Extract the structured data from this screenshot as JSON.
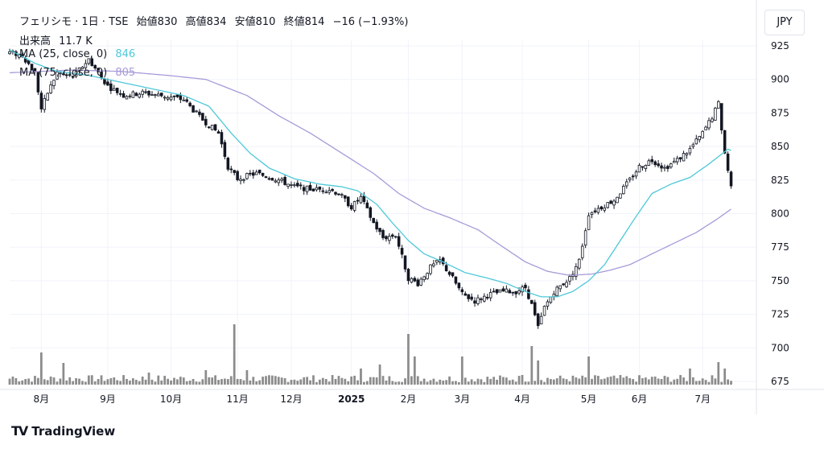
{
  "header": {
    "symbol": "フェリシモ · 1日 · TSE",
    "open_label": "始値",
    "open": "830",
    "high_label": "高値",
    "high": "834",
    "low_label": "安値",
    "low": "810",
    "close_label": "終値",
    "close": "814",
    "change": "−16 (−1.93%)",
    "volume_label": "出来高",
    "volume": "11.7 K",
    "ma1_label": "MA (25, close, 0)",
    "ma1_value": "846",
    "ma2_label": "MA (75, close, 0)",
    "ma2_value": "805"
  },
  "currency": "JPY",
  "brand": "TradingView",
  "colors": {
    "candle": "#131722",
    "ma25": "#4dc8d8",
    "ma75": "#a79ad9",
    "volume": "#8c8c8c",
    "grid": "#f0f3fa"
  },
  "chart_data": {
    "type": "candlestick",
    "y_ticks": [
      925,
      900,
      875,
      850,
      825,
      800,
      775,
      750,
      725,
      700,
      675
    ],
    "ylim": [
      670,
      930
    ],
    "x_ticks": [
      {
        "label": "8月",
        "day": 10
      },
      {
        "label": "9月",
        "day": 31
      },
      {
        "label": "10月",
        "day": 51
      },
      {
        "label": "11月",
        "day": 72
      },
      {
        "label": "12月",
        "day": 89
      },
      {
        "label": "2025",
        "day": 108
      },
      {
        "label": "2月",
        "day": 126
      },
      {
        "label": "3月",
        "day": 143
      },
      {
        "label": "4月",
        "day": 162
      },
      {
        "label": "5月",
        "day": 183
      },
      {
        "label": "6月",
        "day": 199
      },
      {
        "label": "7月",
        "day": 219
      }
    ],
    "x_range": [
      0,
      236
    ],
    "close_anchors": [
      [
        0,
        920
      ],
      [
        4,
        918
      ],
      [
        8,
        905
      ],
      [
        10,
        878
      ],
      [
        12,
        890
      ],
      [
        15,
        905
      ],
      [
        20,
        902
      ],
      [
        25,
        915
      ],
      [
        31,
        895
      ],
      [
        36,
        888
      ],
      [
        42,
        890
      ],
      [
        48,
        888
      ],
      [
        55,
        885
      ],
      [
        60,
        872
      ],
      [
        66,
        860
      ],
      [
        69,
        835
      ],
      [
        72,
        826
      ],
      [
        78,
        830
      ],
      [
        85,
        825
      ],
      [
        90,
        820
      ],
      [
        96,
        818
      ],
      [
        101,
        818
      ],
      [
        104,
        815
      ],
      [
        108,
        805
      ],
      [
        111,
        812
      ],
      [
        115,
        793
      ],
      [
        118,
        782
      ],
      [
        122,
        784
      ],
      [
        126,
        752
      ],
      [
        129,
        748
      ],
      [
        133,
        760
      ],
      [
        136,
        765
      ],
      [
        140,
        752
      ],
      [
        143,
        740
      ],
      [
        147,
        735
      ],
      [
        152,
        740
      ],
      [
        156,
        742
      ],
      [
        160,
        742
      ],
      [
        163,
        745
      ],
      [
        165,
        732
      ],
      [
        167,
        715
      ],
      [
        169,
        730
      ],
      [
        172,
        742
      ],
      [
        175,
        748
      ],
      [
        177,
        752
      ],
      [
        180,
        765
      ],
      [
        183,
        800
      ],
      [
        187,
        805
      ],
      [
        191,
        810
      ],
      [
        195,
        822
      ],
      [
        199,
        835
      ],
      [
        203,
        840
      ],
      [
        207,
        834
      ],
      [
        211,
        840
      ],
      [
        215,
        848
      ],
      [
        219,
        860
      ],
      [
        222,
        872
      ],
      [
        224,
        882
      ],
      [
        226,
        845
      ],
      [
        228,
        820
      ],
      [
        229,
        814
      ]
    ],
    "ma25_anchors": [
      [
        0,
        922
      ],
      [
        8,
        912
      ],
      [
        15,
        906
      ],
      [
        25,
        903
      ],
      [
        35,
        898
      ],
      [
        45,
        893
      ],
      [
        55,
        888
      ],
      [
        63,
        880
      ],
      [
        70,
        860
      ],
      [
        76,
        845
      ],
      [
        82,
        834
      ],
      [
        90,
        826
      ],
      [
        98,
        822
      ],
      [
        105,
        820
      ],
      [
        110,
        817
      ],
      [
        116,
        807
      ],
      [
        121,
        793
      ],
      [
        126,
        780
      ],
      [
        131,
        770
      ],
      [
        137,
        764
      ],
      [
        144,
        756
      ],
      [
        151,
        752
      ],
      [
        157,
        748
      ],
      [
        163,
        742
      ],
      [
        168,
        738
      ],
      [
        173,
        738
      ],
      [
        178,
        742
      ],
      [
        183,
        750
      ],
      [
        188,
        762
      ],
      [
        193,
        780
      ],
      [
        198,
        798
      ],
      [
        203,
        815
      ],
      [
        209,
        822
      ],
      [
        215,
        827
      ],
      [
        221,
        837
      ],
      [
        227,
        848
      ],
      [
        229,
        846
      ]
    ],
    "ma75_anchors": [
      [
        0,
        905
      ],
      [
        20,
        907
      ],
      [
        35,
        906
      ],
      [
        50,
        903
      ],
      [
        62,
        900
      ],
      [
        75,
        888
      ],
      [
        85,
        873
      ],
      [
        95,
        860
      ],
      [
        105,
        845
      ],
      [
        115,
        830
      ],
      [
        123,
        815
      ],
      [
        131,
        804
      ],
      [
        139,
        797
      ],
      [
        148,
        788
      ],
      [
        156,
        775
      ],
      [
        163,
        764
      ],
      [
        170,
        757
      ],
      [
        177,
        754
      ],
      [
        184,
        755
      ],
      [
        190,
        758
      ],
      [
        196,
        762
      ],
      [
        203,
        770
      ],
      [
        210,
        778
      ],
      [
        217,
        786
      ],
      [
        223,
        795
      ],
      [
        229,
        805
      ]
    ],
    "volume_bars_count": 229,
    "volume_peaks": {
      "1": 10,
      "10": 40,
      "17": 27,
      "44": 15,
      "62": 18,
      "71": 75,
      "75": 18,
      "111": 20,
      "117": 25,
      "126": 63,
      "128": 35,
      "143": 35,
      "162": 12,
      "165": 48,
      "167": 30,
      "183": 35,
      "196": 8,
      "215": 20,
      "224": 28,
      "226": 20
    }
  }
}
